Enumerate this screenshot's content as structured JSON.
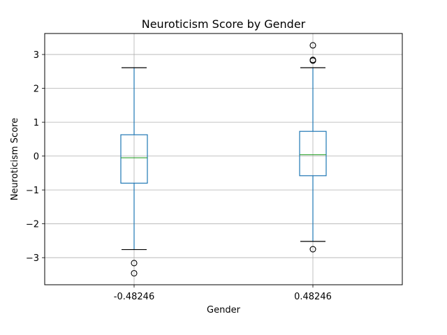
{
  "chart_data": {
    "type": "box",
    "title": "Neuroticism Score by Gender",
    "xlabel": "Gender",
    "ylabel": "Neuroticism Score",
    "ylim": [
      -3.8,
      3.62
    ],
    "yticks": [
      -3,
      -2,
      -1,
      0,
      1,
      2,
      3
    ],
    "ytick_labels": [
      "−3",
      "−2",
      "−1",
      "0",
      "1",
      "2",
      "3"
    ],
    "grid": true,
    "categories": [
      "-0.48246",
      "0.48246"
    ],
    "boxes": [
      {
        "category": "-0.48246",
        "whisker_low": -2.76,
        "q1": -0.8,
        "median": -0.05,
        "q3": 0.63,
        "whisker_high": 2.61,
        "outliers": [
          -3.16,
          -3.46
        ]
      },
      {
        "category": "0.48246",
        "whisker_low": -2.52,
        "q1": -0.58,
        "median": 0.04,
        "q3": 0.73,
        "whisker_high": 2.61,
        "outliers": [
          2.82,
          2.84,
          3.27,
          -2.75
        ]
      }
    ],
    "colors": {
      "box": "#1f77b4",
      "median": "#2ca02c",
      "cap": "#000000",
      "grid": "#b0b0b0"
    }
  }
}
